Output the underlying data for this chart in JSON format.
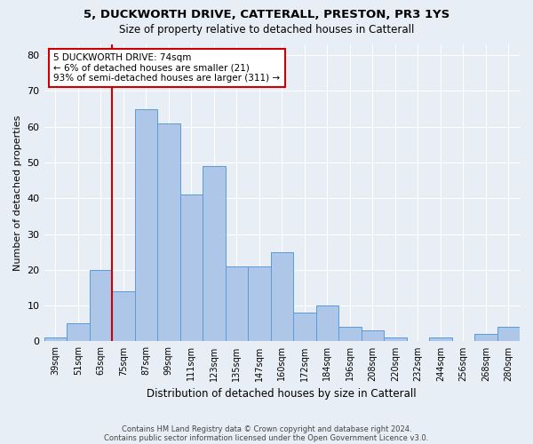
{
  "title1": "5, DUCKWORTH DRIVE, CATTERALL, PRESTON, PR3 1YS",
  "title2": "Size of property relative to detached houses in Catterall",
  "xlabel": "Distribution of detached houses by size in Catterall",
  "ylabel": "Number of detached properties",
  "bins": [
    "39sqm",
    "51sqm",
    "63sqm",
    "75sqm",
    "87sqm",
    "99sqm",
    "111sqm",
    "123sqm",
    "135sqm",
    "147sqm",
    "160sqm",
    "172sqm",
    "184sqm",
    "196sqm",
    "208sqm",
    "220sqm",
    "232sqm",
    "244sqm",
    "256sqm",
    "268sqm",
    "280sqm"
  ],
  "values": [
    1,
    5,
    20,
    14,
    65,
    61,
    41,
    49,
    21,
    21,
    25,
    8,
    10,
    4,
    3,
    1,
    0,
    1,
    0,
    2,
    4
  ],
  "bar_color": "#aec6e8",
  "bar_edge_color": "#5b9bd5",
  "vline_color": "#cc0000",
  "annotation_text": "5 DUCKWORTH DRIVE: 74sqm\n← 6% of detached houses are smaller (21)\n93% of semi-detached houses are larger (311) →",
  "annotation_box_color": "#ffffff",
  "annotation_box_edge": "#cc0000",
  "ylim": [
    0,
    83
  ],
  "yticks": [
    0,
    10,
    20,
    30,
    40,
    50,
    60,
    70,
    80
  ],
  "footer1": "Contains HM Land Registry data © Crown copyright and database right 2024.",
  "footer2": "Contains public sector information licensed under the Open Government Licence v3.0.",
  "bg_color": "#e8eef5",
  "plot_bg_color": "#e8eef5"
}
